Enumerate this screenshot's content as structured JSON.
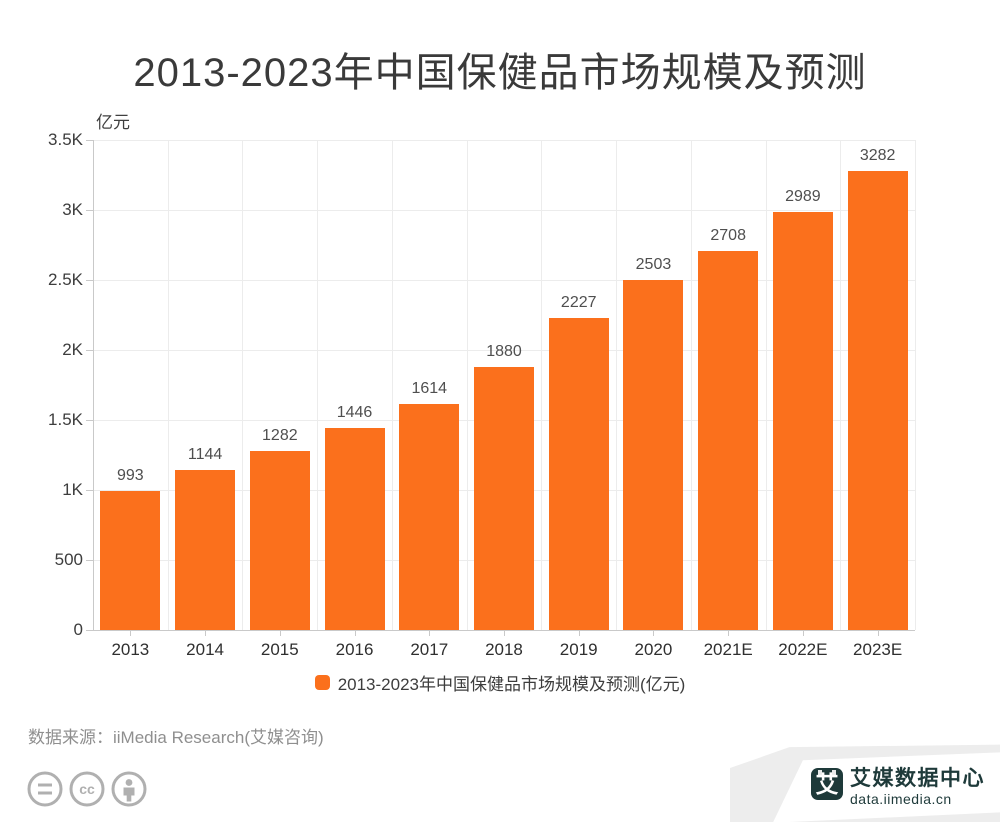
{
  "chart_data": {
    "type": "bar",
    "title": "2013-2023年中国保健品市场规模及预测",
    "ylabel": "亿元",
    "xlabel": "",
    "categories": [
      "2013",
      "2014",
      "2015",
      "2016",
      "2017",
      "2018",
      "2019",
      "2020",
      "2021E",
      "2022E",
      "2023E"
    ],
    "values": [
      993,
      1144,
      1282,
      1446,
      1614,
      1880,
      2227,
      2503,
      2708,
      2989,
      3282
    ],
    "ylim": [
      0,
      3500
    ],
    "ytick_step": 500,
    "ytick_labels": [
      "0",
      "500",
      "1K",
      "1.5K",
      "2K",
      "2.5K",
      "3K",
      "3.5K"
    ],
    "grid": true,
    "legend_label": "2013-2023年中国保健品市场规模及预测(亿元)",
    "legend_position": "bottom",
    "bar_color": "#fb701c"
  },
  "footer": {
    "source": "数据来源：iiMedia Research(艾媒咨询)",
    "license_icons": [
      "equals-icon",
      "cc-icon",
      "person-icon"
    ]
  },
  "branding": {
    "logo_glyph": "艾",
    "site_name": "艾媒数据中心",
    "site_url": "data.iimedia.cn"
  },
  "colors": {
    "bar": "#fb701c",
    "title_text": "#3a3a3a",
    "axis_text": "#3d3d3d",
    "value_text": "#4f4f4f",
    "muted_text": "#8f8f8f",
    "grid_line": "#ececec",
    "axis_line": "#c9c9c9",
    "brand": "#1e3a3a",
    "corner_band": "#ededed",
    "icon_gray": "#b0b0b0"
  }
}
